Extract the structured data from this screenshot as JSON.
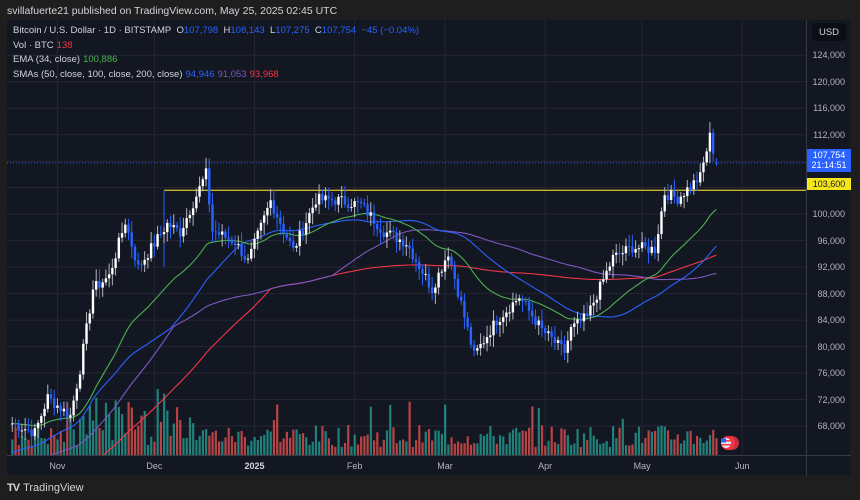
{
  "header": {
    "publish_text": "svillafuerte21 published on TradingView.com, May 25, 2025 02:45 UTC"
  },
  "legend": {
    "symbol": "Bitcoin / U.S. Dollar · 1D · BITSTAMP",
    "open_label": "O",
    "open": "107,798",
    "high_label": "H",
    "high": "108,143",
    "low_label": "L",
    "low": "107,275",
    "close_label": "C",
    "close": "107,754",
    "change": "−45 (−0.04%)",
    "volume_label": "Vol · BTC",
    "volume": "138",
    "ema_label": "EMA (34, close)",
    "ema_value": "100,886",
    "sma_label": "SMAs (50, close, 100, close, 200, close)",
    "sma50": "94,946",
    "sma100": "91,053",
    "sma200": "93,968"
  },
  "price_scale": {
    "currency": "USD",
    "ticks": [
      "124,000",
      "120,000",
      "116,000",
      "112,000",
      "100,000",
      "96,000",
      "92,000",
      "88,000",
      "84,000",
      "80,000",
      "76,000",
      "72,000",
      "68,000"
    ],
    "current_price": "107,754",
    "countdown": "21:14:51",
    "level_price": "103,600"
  },
  "time_scale": {
    "labels": [
      "Nov",
      "Dec",
      "2025",
      "Feb",
      "Mar",
      "Apr",
      "May",
      "Jun"
    ]
  },
  "footer": {
    "logo": "TV",
    "brand": "TradingView"
  },
  "colors": {
    "background": "#131722",
    "up_candle": "#ffffff",
    "down_candle": "#2962ff",
    "ema34": "#4caf50",
    "sma50": "#2962ff",
    "sma100": "#7e57c2",
    "sma200": "#f23645",
    "horizontal_level": "#c9b42b",
    "volume_up": "#26a69a",
    "volume_down": "#ef5350"
  },
  "chart_data": {
    "type": "candlestick",
    "title": "Bitcoin / U.S. Dollar · 1D · BITSTAMP",
    "xlabel": "",
    "ylabel": "USD",
    "ylim": [
      64000,
      128000
    ],
    "x_ticks": [
      "Nov",
      "Dec",
      "2025",
      "Feb",
      "Mar",
      "Apr",
      "May",
      "Jun"
    ],
    "y_ticks": [
      68000,
      72000,
      76000,
      80000,
      84000,
      88000,
      92000,
      96000,
      100000,
      104000,
      108000,
      112000,
      116000,
      120000,
      124000
    ],
    "horizontal_line": {
      "price": 103600,
      "label": "103,600"
    },
    "last": {
      "open": 107798,
      "high": 108143,
      "low": 107275,
      "close": 107754,
      "change": -45,
      "change_pct": -0.04,
      "volume": 138
    },
    "indicators": {
      "EMA34": 100886,
      "SMA50": 94946,
      "SMA100": 91053,
      "SMA200": 93968
    },
    "close_series_approx": [
      {
        "date": "2024-10-18",
        "close": 68400
      },
      {
        "date": "2024-10-25",
        "close": 67000
      },
      {
        "date": "2024-10-29",
        "close": 72300
      },
      {
        "date": "2024-11-05",
        "close": 69500
      },
      {
        "date": "2024-11-08",
        "close": 76600
      },
      {
        "date": "2024-11-12",
        "close": 88700
      },
      {
        "date": "2024-11-17",
        "close": 90600
      },
      {
        "date": "2024-11-22",
        "close": 98900
      },
      {
        "date": "2024-11-26",
        "close": 91900
      },
      {
        "date": "2024-12-05",
        "close": 98500
      },
      {
        "date": "2024-12-09",
        "close": 97300
      },
      {
        "date": "2024-12-17",
        "close": 106100
      },
      {
        "date": "2024-12-19",
        "close": 97500
      },
      {
        "date": "2024-12-26",
        "close": 95800
      },
      {
        "date": "2024-12-30",
        "close": 92800
      },
      {
        "date": "2025-01-06",
        "close": 102000
      },
      {
        "date": "2025-01-13",
        "close": 94500
      },
      {
        "date": "2025-01-20",
        "close": 102200
      },
      {
        "date": "2025-01-27",
        "close": 102100
      },
      {
        "date": "2025-02-03",
        "close": 101400
      },
      {
        "date": "2025-02-10",
        "close": 97400
      },
      {
        "date": "2025-02-17",
        "close": 95700
      },
      {
        "date": "2025-02-25",
        "close": 88700
      },
      {
        "date": "2025-03-02",
        "close": 94300
      },
      {
        "date": "2025-03-10",
        "close": 78600
      },
      {
        "date": "2025-03-17",
        "close": 84000
      },
      {
        "date": "2025-03-24",
        "close": 87500
      },
      {
        "date": "2025-03-31",
        "close": 82500
      },
      {
        "date": "2025-04-07",
        "close": 79200
      },
      {
        "date": "2025-04-09",
        "close": 82600
      },
      {
        "date": "2025-04-14",
        "close": 84500
      },
      {
        "date": "2025-04-22",
        "close": 93400
      },
      {
        "date": "2025-04-28",
        "close": 95000
      },
      {
        "date": "2025-05-05",
        "close": 94700
      },
      {
        "date": "2025-05-08",
        "close": 103200
      },
      {
        "date": "2025-05-12",
        "close": 102400
      },
      {
        "date": "2025-05-19",
        "close": 105600
      },
      {
        "date": "2025-05-22",
        "close": 111700
      },
      {
        "date": "2025-05-24",
        "close": 107754
      }
    ]
  }
}
